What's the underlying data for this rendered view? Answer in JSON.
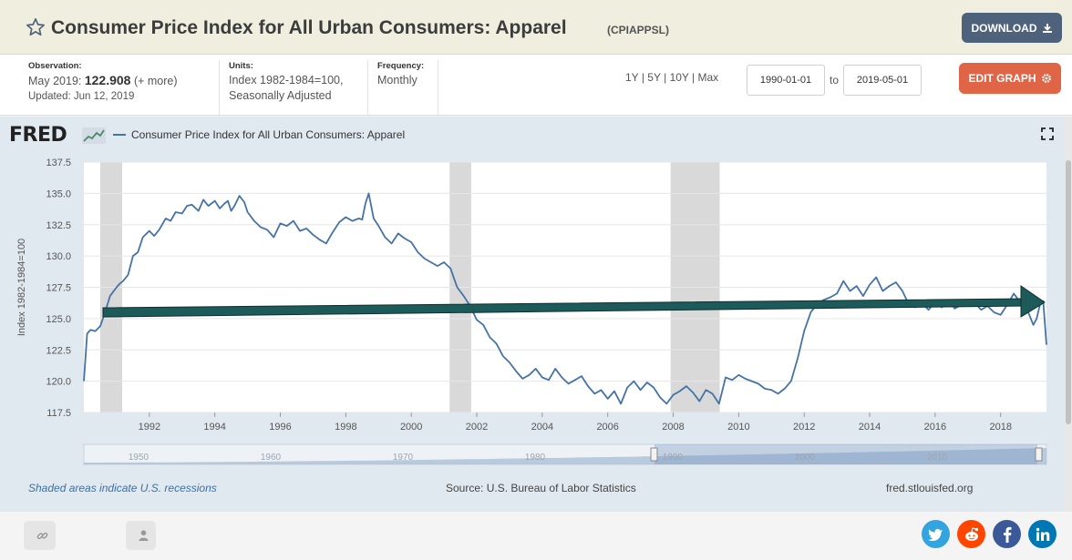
{
  "header": {
    "title": "Consumer Price Index for All Urban Consumers: Apparel",
    "series_id": "(CPIAPPSL)",
    "download_label": "DOWNLOAD"
  },
  "info": {
    "observation_label": "Observation:",
    "observation_date": "May 2019:",
    "observation_value": "122.908",
    "observation_more": "(+ more)",
    "updated": "Updated: Jun 12, 2019",
    "units_label": "Units:",
    "units_line1": "Index 1982-1984=100,",
    "units_line2": "Seasonally Adjusted",
    "frequency_label": "Frequency:",
    "frequency_value": "Monthly"
  },
  "controls": {
    "ranges": [
      "1Y",
      "5Y",
      "10Y",
      "Max"
    ],
    "range_separator": "|",
    "start_date": "1990-01-01",
    "to_label": "to",
    "end_date": "2019-05-01",
    "edit_graph_label": "EDIT GRAPH"
  },
  "chart": {
    "logo": "FRED",
    "legend_label": "Consumer Price Index for All Urban Consumers: Apparel",
    "ylabel": "Index 1982-1984=100",
    "footnote_recessions": "Shaded areas indicate U.S. recessions",
    "footnote_source": "Source: U.S. Bureau of Labor Statistics",
    "footnote_site": "fred.stlouisfed.org",
    "line_color": "#4572a7",
    "recession_color": "#d9d9d9",
    "arrow_color": "#1d5a5a"
  },
  "chart_data": {
    "type": "line",
    "xlim": [
      1990.0,
      2019.4
    ],
    "ylim": [
      117.5,
      137.5
    ],
    "yticks": [
      "117.5",
      "120.0",
      "122.5",
      "125.0",
      "127.5",
      "130.0",
      "132.5",
      "135.0",
      "137.5"
    ],
    "ytick_values": [
      117.5,
      120.0,
      122.5,
      125.0,
      127.5,
      130.0,
      132.5,
      135.0,
      137.5
    ],
    "xticks": [
      "1992",
      "1994",
      "1996",
      "1998",
      "2000",
      "2002",
      "2004",
      "2006",
      "2008",
      "2010",
      "2012",
      "2014",
      "2016",
      "2018"
    ],
    "xtick_values": [
      1992,
      1994,
      1996,
      1998,
      2000,
      2002,
      2004,
      2006,
      2008,
      2010,
      2012,
      2014,
      2016,
      2018
    ],
    "recessions": [
      [
        1990.5,
        1991.17
      ],
      [
        2001.17,
        2001.83
      ],
      [
        2007.92,
        2009.42
      ]
    ],
    "series": [
      {
        "x": [
          1990.0,
          1990.1,
          1990.2,
          1990.35,
          1990.5,
          1990.65,
          1990.8,
          1991.0,
          1991.1,
          1991.2,
          1991.35,
          1991.5,
          1991.65,
          1991.8,
          1992.0,
          1992.15,
          1992.3,
          1992.5,
          1992.65,
          1992.8,
          1993.0,
          1993.15,
          1993.3,
          1993.5,
          1993.65,
          1993.8,
          1994.0,
          1994.15,
          1994.3,
          1994.4,
          1994.5,
          1994.6,
          1994.75,
          1994.9,
          1995.0,
          1995.2,
          1995.4,
          1995.6,
          1995.8,
          1996.0,
          1996.2,
          1996.4,
          1996.6,
          1996.8,
          1997.0,
          1997.2,
          1997.4,
          1997.6,
          1997.8,
          1998.0,
          1998.2,
          1998.4,
          1998.5,
          1998.6,
          1998.7,
          1998.85,
          1999.0,
          1999.2,
          1999.4,
          1999.6,
          1999.8,
          2000.0,
          2000.2,
          2000.4,
          2000.6,
          2000.8,
          2001.0,
          2001.2,
          2001.4,
          2001.6,
          2001.8,
          2002.0,
          2002.2,
          2002.4,
          2002.6,
          2002.8,
          2003.0,
          2003.2,
          2003.4,
          2003.6,
          2003.8,
          2004.0,
          2004.2,
          2004.4,
          2004.6,
          2004.8,
          2005.0,
          2005.2,
          2005.4,
          2005.6,
          2005.8,
          2006.0,
          2006.2,
          2006.4,
          2006.6,
          2006.8,
          2007.0,
          2007.2,
          2007.4,
          2007.6,
          2007.8,
          2008.0,
          2008.2,
          2008.4,
          2008.6,
          2008.8,
          2009.0,
          2009.2,
          2009.4,
          2009.6,
          2009.8,
          2010.0,
          2010.2,
          2010.4,
          2010.6,
          2010.8,
          2011.0,
          2011.2,
          2011.4,
          2011.6,
          2011.8,
          2012.0,
          2012.2,
          2012.4,
          2012.6,
          2012.8,
          2013.0,
          2013.2,
          2013.4,
          2013.6,
          2013.8,
          2014.0,
          2014.2,
          2014.4,
          2014.6,
          2014.8,
          2015.0,
          2015.2,
          2015.4,
          2015.6,
          2015.8,
          2016.0,
          2016.2,
          2016.4,
          2016.6,
          2016.8,
          2017.0,
          2017.2,
          2017.4,
          2017.6,
          2017.8,
          2018.0,
          2018.2,
          2018.4,
          2018.6,
          2018.8,
          2019.0,
          2019.1,
          2019.2,
          2019.3,
          2019.4
        ],
        "values": [
          120.0,
          123.8,
          124.1,
          124.0,
          124.4,
          125.5,
          126.8,
          127.5,
          127.8,
          128.0,
          128.5,
          130.0,
          130.3,
          131.5,
          132.0,
          131.6,
          132.1,
          133.0,
          132.8,
          133.5,
          133.4,
          134.0,
          134.1,
          133.6,
          134.5,
          134.0,
          134.4,
          133.8,
          134.2,
          134.4,
          133.6,
          134.0,
          134.8,
          134.3,
          133.5,
          132.8,
          132.3,
          132.1,
          131.5,
          132.6,
          132.4,
          132.8,
          132.0,
          132.2,
          131.7,
          131.3,
          131.0,
          131.9,
          132.7,
          133.1,
          132.8,
          133.0,
          132.9,
          134.2,
          135.0,
          133.0,
          132.4,
          131.5,
          131.0,
          131.8,
          131.4,
          131.1,
          130.3,
          129.8,
          129.5,
          129.2,
          129.5,
          129.0,
          127.5,
          126.8,
          126.0,
          124.9,
          124.5,
          123.5,
          123.0,
          122.0,
          121.5,
          120.8,
          120.2,
          120.5,
          121.0,
          120.3,
          120.1,
          121.0,
          120.3,
          119.8,
          120.1,
          120.4,
          119.6,
          119.0,
          119.3,
          118.6,
          119.2,
          118.2,
          119.5,
          120.0,
          119.3,
          119.9,
          119.5,
          118.7,
          118.2,
          118.9,
          119.2,
          119.6,
          119.1,
          118.4,
          119.3,
          119.0,
          118.2,
          120.3,
          120.1,
          120.5,
          120.2,
          120.0,
          119.8,
          119.4,
          119.3,
          119.0,
          119.4,
          120.0,
          121.8,
          124.0,
          125.5,
          126.2,
          126.5,
          126.7,
          127.0,
          128.0,
          127.2,
          127.6,
          126.8,
          127.7,
          128.3,
          127.2,
          127.6,
          127.9,
          127.2,
          126.1,
          125.9,
          126.2,
          125.7,
          126.3,
          125.9,
          126.5,
          125.8,
          126.1,
          126.0,
          126.3,
          125.7,
          126.0,
          125.5,
          125.3,
          126.1,
          127.0,
          126.3,
          125.8,
          124.5,
          125.0,
          126.1,
          126.4,
          122.9
        ]
      }
    ]
  }
}
